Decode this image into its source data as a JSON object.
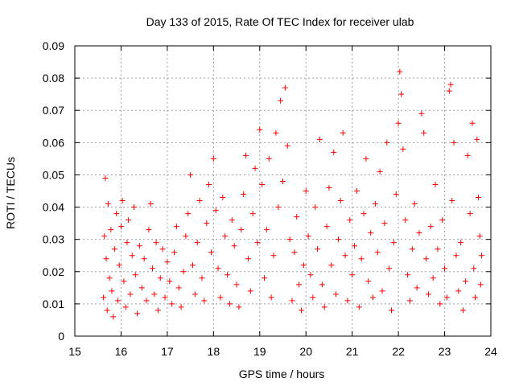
{
  "chart_data": {
    "type": "scatter",
    "title": "Day 133 of 2015, Rate Of TEC Index for receiver ulab",
    "xlabel": "GPS time / hours",
    "ylabel": "ROTI / TECUs",
    "xlim": [
      15,
      24
    ],
    "ylim": [
      0,
      0.09
    ],
    "x_ticks": [
      "15",
      "16",
      "17",
      "18",
      "19",
      "20",
      "21",
      "22",
      "23",
      "24"
    ],
    "y_ticks": [
      "0",
      "0.01",
      "0.02",
      "0.03",
      "0.04",
      "0.05",
      "0.06",
      "0.07",
      "0.08",
      "0.09"
    ],
    "grid": true,
    "marker": "+",
    "color": "#ff0000",
    "x_range_data": [
      15.6,
      23.8
    ],
    "series": [
      {
        "points": [
          [
            15.62,
            0.012
          ],
          [
            15.64,
            0.031
          ],
          [
            15.66,
            0.049
          ],
          [
            15.68,
            0.024
          ],
          [
            15.7,
            0.008
          ],
          [
            15.72,
            0.041
          ],
          [
            15.75,
            0.018
          ],
          [
            15.78,
            0.033
          ],
          [
            15.8,
            0.014
          ],
          [
            15.83,
            0.006
          ],
          [
            15.86,
            0.027
          ],
          [
            15.9,
            0.038
          ],
          [
            15.93,
            0.011
          ],
          [
            15.96,
            0.022
          ],
          [
            16.0,
            0.034
          ],
          [
            16.03,
            0.042
          ],
          [
            16.06,
            0.017
          ],
          [
            16.1,
            0.009
          ],
          [
            16.13,
            0.029
          ],
          [
            16.16,
            0.036
          ],
          [
            16.2,
            0.013
          ],
          [
            16.24,
            0.025
          ],
          [
            16.28,
            0.04
          ],
          [
            16.31,
            0.019
          ],
          [
            16.35,
            0.007
          ],
          [
            16.4,
            0.028
          ],
          [
            16.45,
            0.015
          ],
          [
            16.5,
            0.024
          ],
          [
            16.55,
            0.011
          ],
          [
            16.6,
            0.033
          ],
          [
            16.64,
            0.041
          ],
          [
            16.68,
            0.021
          ],
          [
            16.72,
            0.013
          ],
          [
            16.76,
            0.029
          ],
          [
            16.8,
            0.008
          ],
          [
            16.85,
            0.018
          ],
          [
            16.9,
            0.027
          ],
          [
            16.95,
            0.012
          ],
          [
            17.0,
            0.023
          ],
          [
            17.05,
            0.017
          ],
          [
            17.1,
            0.01
          ],
          [
            17.15,
            0.026
          ],
          [
            17.2,
            0.034
          ],
          [
            17.25,
            0.015
          ],
          [
            17.3,
            0.009
          ],
          [
            17.35,
            0.02
          ],
          [
            17.4,
            0.031
          ],
          [
            17.45,
            0.038
          ],
          [
            17.5,
            0.05
          ],
          [
            17.55,
            0.022
          ],
          [
            17.6,
            0.013
          ],
          [
            17.65,
            0.029
          ],
          [
            17.7,
            0.042
          ],
          [
            17.75,
            0.018
          ],
          [
            17.8,
            0.011
          ],
          [
            17.85,
            0.035
          ],
          [
            17.9,
            0.047
          ],
          [
            17.95,
            0.026
          ],
          [
            18.0,
            0.055
          ],
          [
            18.05,
            0.039
          ],
          [
            18.1,
            0.021
          ],
          [
            18.15,
            0.012
          ],
          [
            18.2,
            0.043
          ],
          [
            18.25,
            0.031
          ],
          [
            18.3,
            0.019
          ],
          [
            18.35,
            0.01
          ],
          [
            18.4,
            0.036
          ],
          [
            18.45,
            0.028
          ],
          [
            18.5,
            0.016
          ],
          [
            18.55,
            0.009
          ],
          [
            18.6,
            0.033
          ],
          [
            18.65,
            0.044
          ],
          [
            18.7,
            0.056
          ],
          [
            18.75,
            0.024
          ],
          [
            18.8,
            0.014
          ],
          [
            18.85,
            0.038
          ],
          [
            18.9,
            0.052
          ],
          [
            18.95,
            0.029
          ],
          [
            19.0,
            0.064
          ],
          [
            19.05,
            0.047
          ],
          [
            19.1,
            0.018
          ],
          [
            19.15,
            0.033
          ],
          [
            19.2,
            0.055
          ],
          [
            19.25,
            0.012
          ],
          [
            19.3,
            0.025
          ],
          [
            19.35,
            0.063
          ],
          [
            19.4,
            0.04
          ],
          [
            19.45,
            0.073
          ],
          [
            19.5,
            0.048
          ],
          [
            19.55,
            0.077
          ],
          [
            19.6,
            0.059
          ],
          [
            19.65,
            0.03
          ],
          [
            19.7,
            0.011
          ],
          [
            19.75,
            0.026
          ],
          [
            19.8,
            0.037
          ],
          [
            19.85,
            0.016
          ],
          [
            19.9,
            0.008
          ],
          [
            19.95,
            0.022
          ],
          [
            20.0,
            0.045
          ],
          [
            20.05,
            0.031
          ],
          [
            20.1,
            0.019
          ],
          [
            20.15,
            0.012
          ],
          [
            20.2,
            0.04
          ],
          [
            20.25,
            0.027
          ],
          [
            20.3,
            0.061
          ],
          [
            20.35,
            0.016
          ],
          [
            20.4,
            0.009
          ],
          [
            20.45,
            0.034
          ],
          [
            20.5,
            0.046
          ],
          [
            20.55,
            0.022
          ],
          [
            20.6,
            0.057
          ],
          [
            20.65,
            0.013
          ],
          [
            20.7,
            0.03
          ],
          [
            20.75,
            0.042
          ],
          [
            20.8,
            0.063
          ],
          [
            20.85,
            0.025
          ],
          [
            20.9,
            0.011
          ],
          [
            20.95,
            0.036
          ],
          [
            21.0,
            0.019
          ],
          [
            21.05,
            0.028
          ],
          [
            21.1,
            0.045
          ],
          [
            21.15,
            0.009
          ],
          [
            21.2,
            0.024
          ],
          [
            21.25,
            0.038
          ],
          [
            21.3,
            0.055
          ],
          [
            21.35,
            0.017
          ],
          [
            21.4,
            0.032
          ],
          [
            21.45,
            0.012
          ],
          [
            21.5,
            0.041
          ],
          [
            21.55,
            0.026
          ],
          [
            21.6,
            0.051
          ],
          [
            21.65,
            0.014
          ],
          [
            21.7,
            0.035
          ],
          [
            21.75,
            0.06
          ],
          [
            21.8,
            0.021
          ],
          [
            21.85,
            0.008
          ],
          [
            21.9,
            0.029
          ],
          [
            21.95,
            0.044
          ],
          [
            22.0,
            0.066
          ],
          [
            22.03,
            0.082
          ],
          [
            22.06,
            0.075
          ],
          [
            22.1,
            0.058
          ],
          [
            22.15,
            0.036
          ],
          [
            22.2,
            0.019
          ],
          [
            22.25,
            0.011
          ],
          [
            22.3,
            0.027
          ],
          [
            22.35,
            0.041
          ],
          [
            22.4,
            0.015
          ],
          [
            22.45,
            0.032
          ],
          [
            22.5,
            0.069
          ],
          [
            22.55,
            0.063
          ],
          [
            22.6,
            0.024
          ],
          [
            22.65,
            0.013
          ],
          [
            22.7,
            0.034
          ],
          [
            22.75,
            0.018
          ],
          [
            22.8,
            0.047
          ],
          [
            22.85,
            0.027
          ],
          [
            22.9,
            0.01
          ],
          [
            22.95,
            0.036
          ],
          [
            23.0,
            0.021
          ],
          [
            23.05,
            0.012
          ],
          [
            23.1,
            0.076
          ],
          [
            23.13,
            0.078
          ],
          [
            23.16,
            0.042
          ],
          [
            23.2,
            0.06
          ],
          [
            23.25,
            0.025
          ],
          [
            23.3,
            0.014
          ],
          [
            23.35,
            0.029
          ],
          [
            23.4,
            0.008
          ],
          [
            23.45,
            0.017
          ],
          [
            23.5,
            0.056
          ],
          [
            23.55,
            0.038
          ],
          [
            23.6,
            0.066
          ],
          [
            23.63,
            0.021
          ],
          [
            23.66,
            0.012
          ],
          [
            23.7,
            0.061
          ],
          [
            23.73,
            0.043
          ],
          [
            23.76,
            0.031
          ],
          [
            23.78,
            0.016
          ],
          [
            23.8,
            0.025
          ]
        ]
      }
    ]
  }
}
